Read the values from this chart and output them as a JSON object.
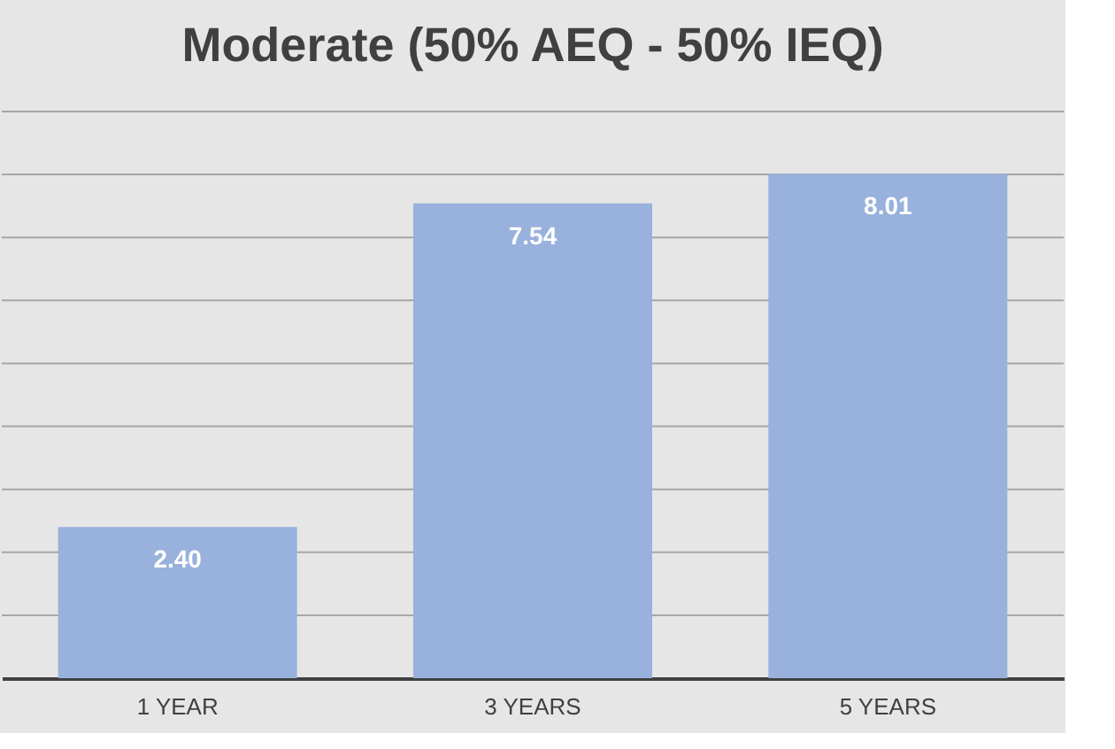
{
  "chart_data": {
    "type": "bar",
    "title": "Moderate (50% AEQ - 50% IEQ)",
    "categories": [
      "1 YEAR",
      "3 YEARS",
      "5 YEARS"
    ],
    "values": [
      2.4,
      7.54,
      8.01
    ],
    "value_labels": [
      "2.40",
      "7.54",
      "8.01"
    ],
    "color": "#98b1dd",
    "ylim": [
      0,
      9
    ],
    "yticks": [
      {
        "value": 1,
        "label": null
      },
      {
        "value": 2,
        "label": null
      },
      {
        "value": 3,
        "label": null
      },
      {
        "value": 4,
        "label": null
      },
      {
        "value": 5,
        "label": null
      },
      {
        "value": 6,
        "label": null
      },
      {
        "value": 7,
        "label": null
      },
      {
        "value": 8,
        "label": null
      },
      {
        "value": 9,
        "label": null
      }
    ],
    "tick_labels": "x",
    "grid": "y"
  }
}
